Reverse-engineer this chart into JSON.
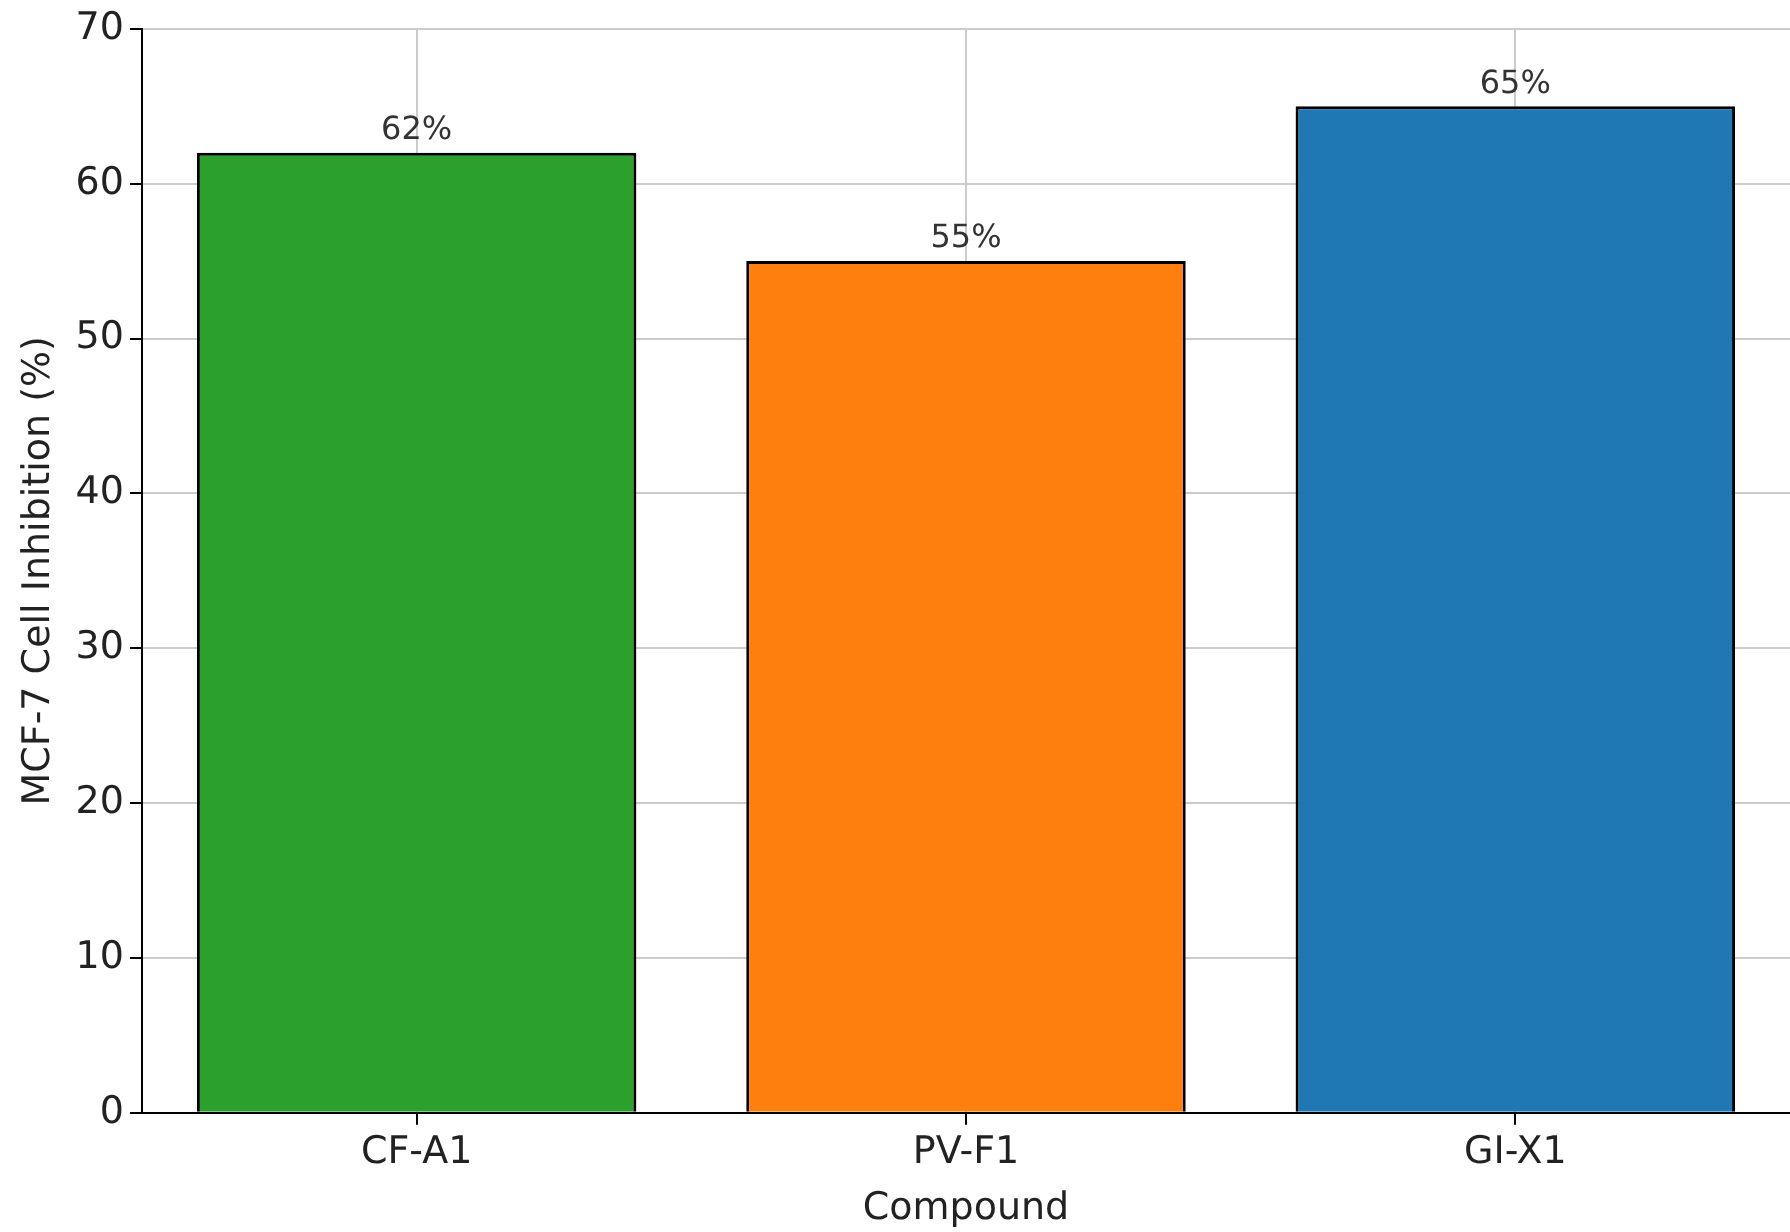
{
  "chart_data": {
    "type": "bar",
    "xlabel": "Compound",
    "ylabel": "MCF-7 Cell Inhibition (%)",
    "categories": [
      "CF-A1",
      "PV-F1",
      "GI-X1"
    ],
    "values": [
      62,
      55,
      65
    ],
    "colors": [
      "#2ca02c",
      "#ff7f0e",
      "#1f77b4"
    ],
    "value_labels": [
      "62%",
      "55%",
      "65%"
    ],
    "ylim": [
      0,
      70
    ],
    "yticks": [
      0,
      10,
      20,
      30,
      40,
      50,
      60,
      70
    ],
    "grid": true
  }
}
